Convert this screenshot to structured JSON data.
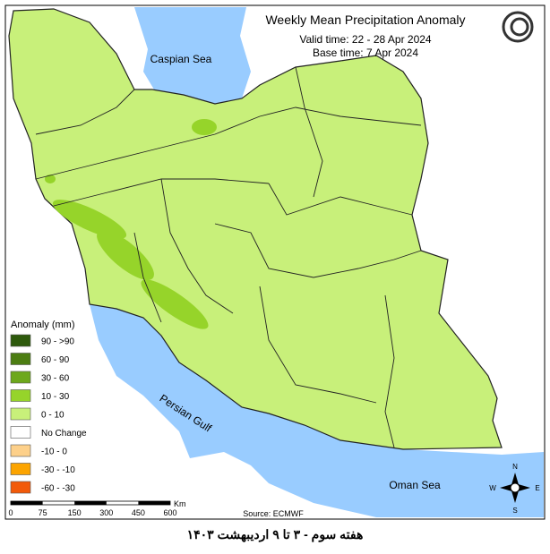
{
  "header": {
    "title": "Weekly Mean Precipitation Anomaly",
    "valid_time": "Valid time: 22 - 28 Apr 2024",
    "base_time": "Base time: 7 Apr 2024"
  },
  "labels": {
    "caspian": "Caspian Sea",
    "gulf": "Persian Gulf",
    "oman": "Oman Sea",
    "source": "Source: ECMWF"
  },
  "legend": {
    "title": "Anomaly (mm)",
    "items": [
      {
        "label": "90 - >90",
        "color": "#2e5a0c"
      },
      {
        "label": "60 - 90",
        "color": "#4c7d12"
      },
      {
        "label": "30 - 60",
        "color": "#6da81c"
      },
      {
        "label": "10 - 30",
        "color": "#96d42a"
      },
      {
        "label": "0 - 10",
        "color": "#c8f07a"
      },
      {
        "label": "No Change",
        "color": "#ffffff"
      },
      {
        "label": "-10 - 0",
        "color": "#fdd08a"
      },
      {
        "label": "-30 - -10",
        "color": "#fca400"
      },
      {
        "label": "-60 - -30",
        "color": "#f25a0a"
      }
    ]
  },
  "scale": {
    "labels": [
      "0",
      "75",
      "150",
      "300",
      "450",
      "600"
    ],
    "unit": "Km"
  },
  "compass": {
    "n": "N",
    "e": "E",
    "s": "S",
    "w": "W"
  },
  "footer": "هفته سوم - ۳ تا ۹ اردیبهشت ۱۴۰۳"
}
